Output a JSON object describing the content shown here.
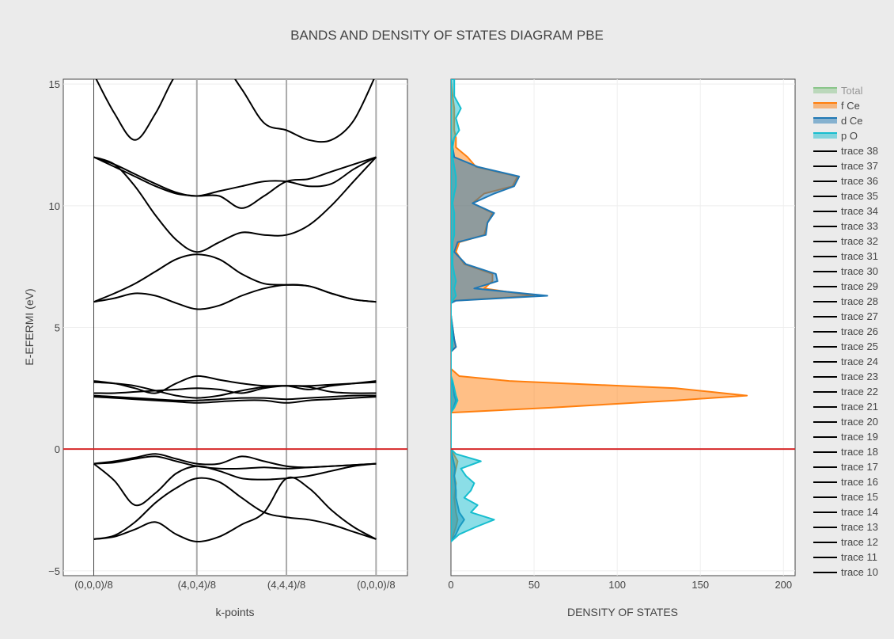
{
  "chart_data": {
    "title": "BANDS AND DENSITY OF STATES DIAGRAM PBE",
    "type": "line",
    "colors": {
      "background": "#ebebeb",
      "plot_bg": "#ffffff",
      "band_line": "#000000",
      "fermi_line": "#d62728",
      "total": "#2ca02c",
      "f_ce": "#ff7f0e",
      "d_ce": "#1f77b4",
      "p_o": "#17becf"
    },
    "ylabel": "E-EFERMI (eV)",
    "ylim": [
      -5.2,
      15.2
    ],
    "yticks": [
      "−5",
      "0",
      "5",
      "10",
      "15"
    ],
    "ytick_values": [
      -5,
      0,
      5,
      10,
      15
    ],
    "fermi_level": 0,
    "bands": {
      "xlabel": "k-points",
      "kpoint_labels": [
        "(0,0,0)/8",
        "(4,0,4)/8",
        "(4,4,4)/8",
        "(0,0,0)/8"
      ],
      "kpoint_positions": [
        0,
        1.15,
        2.15,
        3.15
      ],
      "xlim": [
        -0.34,
        3.5
      ],
      "x": [
        0,
        0.23,
        0.46,
        0.69,
        0.92,
        1.15,
        1.4,
        1.65,
        1.9,
        2.15,
        2.4,
        2.65,
        2.9,
        3.15
      ],
      "series": [
        {
          "values": [
            -3.7,
            -3.55,
            -3.0,
            -2.2,
            -1.6,
            -1.2,
            -1.35,
            -2.0,
            -2.6,
            -2.8,
            -2.9,
            -3.1,
            -3.4,
            -3.7
          ]
        },
        {
          "values": [
            -3.7,
            -3.6,
            -3.3,
            -3.0,
            -3.5,
            -3.8,
            -3.6,
            -3.1,
            -2.6,
            -1.2,
            -1.6,
            -2.5,
            -3.2,
            -3.7
          ]
        },
        {
          "values": [
            -0.6,
            -1.3,
            -2.3,
            -1.8,
            -1.0,
            -0.7,
            -0.9,
            -1.2,
            -1.25,
            -1.2,
            -1.1,
            -0.9,
            -0.7,
            -0.6
          ]
        },
        {
          "values": [
            -0.6,
            -0.55,
            -0.4,
            -0.3,
            -0.5,
            -0.7,
            -0.8,
            -0.8,
            -0.75,
            -0.8,
            -0.75,
            -0.7,
            -0.65,
            -0.6
          ]
        },
        {
          "values": [
            -0.6,
            -0.5,
            -0.35,
            -0.2,
            -0.4,
            -0.6,
            -0.6,
            -0.3,
            -0.5,
            -0.7,
            -0.75,
            -0.7,
            -0.65,
            -0.6
          ]
        },
        {
          "values": [
            2.15,
            2.1,
            2.05,
            2.0,
            1.95,
            1.9,
            1.95,
            2.0,
            2.0,
            1.9,
            2.0,
            2.05,
            2.1,
            2.15
          ]
        },
        {
          "values": [
            2.2,
            2.15,
            2.1,
            2.05,
            2.0,
            2.0,
            2.05,
            2.1,
            2.1,
            2.05,
            2.1,
            2.15,
            2.2,
            2.2
          ]
        },
        {
          "values": [
            2.3,
            2.3,
            2.35,
            2.4,
            2.45,
            2.5,
            2.45,
            2.3,
            2.5,
            2.6,
            2.55,
            2.35,
            2.3,
            2.3
          ]
        },
        {
          "values": [
            2.75,
            2.7,
            2.6,
            2.4,
            2.2,
            2.1,
            2.2,
            2.4,
            2.55,
            2.6,
            2.6,
            2.65,
            2.7,
            2.75
          ]
        },
        {
          "values": [
            2.8,
            2.7,
            2.5,
            2.3,
            2.7,
            3.0,
            2.85,
            2.7,
            2.6,
            2.6,
            2.45,
            2.6,
            2.7,
            2.8
          ]
        },
        {
          "values": [
            6.05,
            6.2,
            6.4,
            6.3,
            6.0,
            5.75,
            5.9,
            6.3,
            6.6,
            6.75,
            6.7,
            6.4,
            6.15,
            6.05
          ]
        },
        {
          "values": [
            6.05,
            6.4,
            6.8,
            7.3,
            7.8,
            8.0,
            7.8,
            7.2,
            6.8,
            6.75,
            6.7,
            6.4,
            6.15,
            6.05
          ]
        },
        {
          "values": [
            12.0,
            11.7,
            10.8,
            9.6,
            8.6,
            8.1,
            8.5,
            8.9,
            8.8,
            8.8,
            9.2,
            10.0,
            11.0,
            12.0
          ]
        },
        {
          "values": [
            12.0,
            11.6,
            11.2,
            10.8,
            10.5,
            10.4,
            10.4,
            9.9,
            10.4,
            11.0,
            11.1,
            11.4,
            11.7,
            12.0
          ]
        },
        {
          "values": [
            12.0,
            11.7,
            11.3,
            10.9,
            10.55,
            10.4,
            10.6,
            10.8,
            11.0,
            11.0,
            10.8,
            10.9,
            11.5,
            12.0
          ]
        },
        {
          "values": [
            15.4,
            13.8,
            12.7,
            13.8,
            15.4,
            16.0,
            16.0,
            14.8,
            13.4,
            13.1,
            12.7,
            12.7,
            13.5,
            15.4
          ]
        }
      ]
    },
    "dos": {
      "xlabel": "DENSITY OF STATES",
      "xlim": [
        0,
        207
      ],
      "xticks": [
        "0",
        "50",
        "100",
        "150",
        "200"
      ],
      "xtick_values": [
        0,
        50,
        100,
        150,
        200
      ],
      "energy": [
        -3.8,
        -3.5,
        -3.2,
        -2.9,
        -2.6,
        -2.3,
        -2.0,
        -1.7,
        -1.4,
        -1.1,
        -0.8,
        -0.5,
        -0.2,
        0.0,
        1.5,
        1.7,
        2.0,
        2.2,
        2.5,
        2.8,
        3.0,
        3.3,
        4.0,
        4.2,
        4.5,
        5.5,
        6.0,
        6.1,
        6.3,
        6.6,
        6.9,
        7.2,
        7.6,
        8.1,
        8.5,
        8.8,
        9.3,
        9.7,
        10.1,
        10.5,
        10.8,
        11.2,
        11.6,
        12.0,
        12.4,
        12.8,
        13.1,
        13.6,
        14.0,
        14.5,
        15.2
      ],
      "series": [
        {
          "name": "Total",
          "color": "#2ca02c",
          "hidden": true,
          "values": []
        },
        {
          "name": "f Ce",
          "color": "#ff7f0e",
          "values": [
            0,
            1.5,
            3,
            4,
            3,
            2.5,
            2,
            2.5,
            3,
            2,
            3,
            4,
            1.5,
            0,
            0,
            60,
            135,
            178,
            135,
            35,
            5,
            0,
            0,
            3,
            2,
            0,
            0,
            2,
            50,
            20,
            25,
            25,
            8,
            3,
            5,
            20,
            22,
            25,
            13,
            20,
            37,
            40,
            15,
            10,
            3,
            3,
            2,
            2,
            2,
            1,
            0
          ]
        },
        {
          "name": "d Ce",
          "color": "#1f77b4",
          "values": [
            0,
            3,
            5,
            8,
            5,
            4,
            3,
            3,
            2.5,
            2,
            2.5,
            1.5,
            0.5,
            0,
            0,
            1.5,
            3,
            2,
            1.5,
            0.5,
            0,
            0,
            0,
            3,
            2,
            0,
            0,
            3,
            58,
            14,
            28,
            27,
            9,
            2,
            4,
            21,
            22,
            26,
            13,
            26,
            38,
            41,
            16,
            2,
            1,
            0,
            0,
            0,
            0,
            0,
            0
          ]
        },
        {
          "name": "p O",
          "color": "#17becf",
          "values": [
            0,
            5,
            15,
            26,
            12,
            16,
            8,
            12,
            14,
            9,
            6,
            18,
            3,
            0,
            0,
            2,
            4,
            3,
            2,
            1,
            0,
            0,
            0,
            1,
            1,
            0,
            0,
            1,
            3,
            2,
            3,
            2,
            1,
            1,
            1,
            2,
            2,
            2,
            1,
            2,
            3,
            3,
            2,
            1,
            1,
            2,
            5,
            3,
            6,
            2,
            2
          ]
        }
      ]
    },
    "legend": [
      {
        "name": "Total",
        "kind": "area",
        "color": "#2ca02c",
        "dimmed": true
      },
      {
        "name": "f Ce",
        "kind": "area",
        "color": "#ff7f0e"
      },
      {
        "name": "d Ce",
        "kind": "area",
        "color": "#1f77b4"
      },
      {
        "name": "p O",
        "kind": "area",
        "color": "#17becf"
      },
      {
        "name": "trace 38",
        "kind": "line",
        "color": "#000000"
      },
      {
        "name": "trace 37",
        "kind": "line",
        "color": "#000000"
      },
      {
        "name": "trace 36",
        "kind": "line",
        "color": "#000000"
      },
      {
        "name": "trace 35",
        "kind": "line",
        "color": "#000000"
      },
      {
        "name": "trace 34",
        "kind": "line",
        "color": "#000000"
      },
      {
        "name": "trace 33",
        "kind": "line",
        "color": "#000000"
      },
      {
        "name": "trace 32",
        "kind": "line",
        "color": "#000000"
      },
      {
        "name": "trace 31",
        "kind": "line",
        "color": "#000000"
      },
      {
        "name": "trace 30",
        "kind": "line",
        "color": "#000000"
      },
      {
        "name": "trace 29",
        "kind": "line",
        "color": "#000000"
      },
      {
        "name": "trace 28",
        "kind": "line",
        "color": "#000000"
      },
      {
        "name": "trace 27",
        "kind": "line",
        "color": "#000000"
      },
      {
        "name": "trace 26",
        "kind": "line",
        "color": "#000000"
      },
      {
        "name": "trace 25",
        "kind": "line",
        "color": "#000000"
      },
      {
        "name": "trace 24",
        "kind": "line",
        "color": "#000000"
      },
      {
        "name": "trace 23",
        "kind": "line",
        "color": "#000000"
      },
      {
        "name": "trace 22",
        "kind": "line",
        "color": "#000000"
      },
      {
        "name": "trace 21",
        "kind": "line",
        "color": "#000000"
      },
      {
        "name": "trace 20",
        "kind": "line",
        "color": "#000000"
      },
      {
        "name": "trace 19",
        "kind": "line",
        "color": "#000000"
      },
      {
        "name": "trace 18",
        "kind": "line",
        "color": "#000000"
      },
      {
        "name": "trace 17",
        "kind": "line",
        "color": "#000000"
      },
      {
        "name": "trace 16",
        "kind": "line",
        "color": "#000000"
      },
      {
        "name": "trace 15",
        "kind": "line",
        "color": "#000000"
      },
      {
        "name": "trace 14",
        "kind": "line",
        "color": "#000000"
      },
      {
        "name": "trace 13",
        "kind": "line",
        "color": "#000000"
      },
      {
        "name": "trace 12",
        "kind": "line",
        "color": "#000000"
      },
      {
        "name": "trace 11",
        "kind": "line",
        "color": "#000000"
      },
      {
        "name": "trace 10",
        "kind": "line",
        "color": "#000000"
      }
    ],
    "legend_position": "right",
    "grid": true
  }
}
